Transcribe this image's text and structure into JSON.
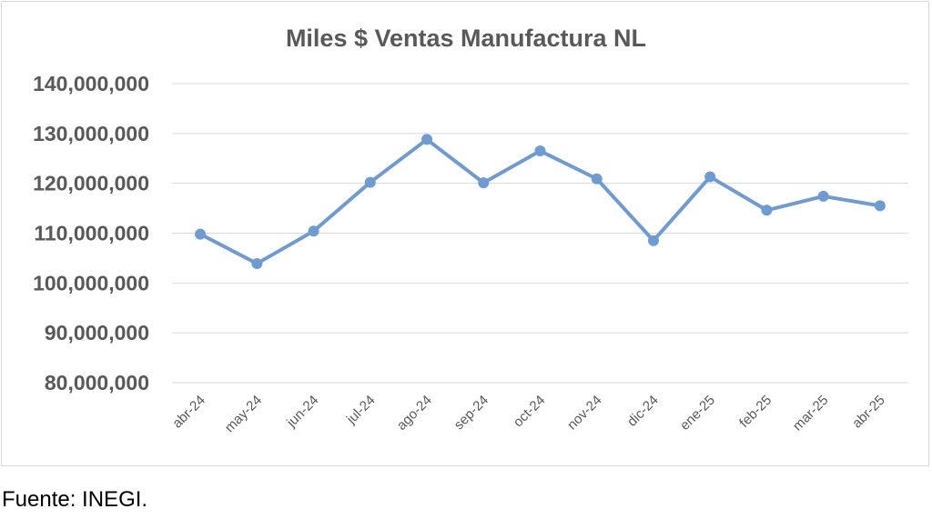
{
  "chart_data": {
    "type": "line",
    "title": "Miles $ Ventas Manufactura NL",
    "xlabel": "",
    "ylabel": "",
    "categories": [
      "abr-24",
      "may-24",
      "jun-24",
      "jul-24",
      "ago-24",
      "sep-24",
      "oct-24",
      "nov-24",
      "dic-24",
      "ene-25",
      "feb-25",
      "mar-25",
      "abr-25"
    ],
    "series": [
      {
        "values": [
          109800000,
          103900000,
          110400000,
          120200000,
          128800000,
          120100000,
          126500000,
          120900000,
          108500000,
          121300000,
          114600000,
          117400000,
          115500000
        ]
      }
    ],
    "ylim": [
      80000000,
      140000000
    ],
    "yticks": [
      80000000,
      90000000,
      100000000,
      110000000,
      120000000,
      130000000,
      140000000
    ],
    "ytick_labels": [
      "80,000,000",
      "90,000,000",
      "100,000,000",
      "110,000,000",
      "120,000,000",
      "130,000,000",
      "140,000,000"
    ],
    "grid": true,
    "legend": "none",
    "line_color": "#6f9bd3",
    "marker_color": "#6f9bd3"
  },
  "source_note": "Fuente: INEGI."
}
